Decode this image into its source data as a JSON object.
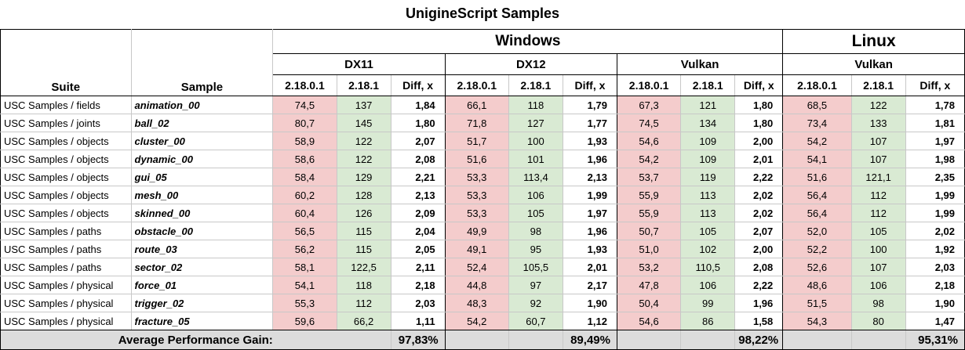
{
  "title": "UnigineScript Samples",
  "headers": {
    "suite": "Suite",
    "sample": "Sample",
    "windows": "Windows",
    "linux": "Linux",
    "dx11": "DX11",
    "dx12": "DX12",
    "vulkan_win": "Vulkan",
    "vulkan_linux": "Vulkan",
    "v_old": "2.18.0.1",
    "v_new": "2.18.1",
    "diff": "Diff, x"
  },
  "rows": [
    {
      "suite": "USC Samples / fields",
      "sample": "animation_00",
      "v": [
        "74,5",
        "137",
        "1,84",
        "66,1",
        "118",
        "1,79",
        "67,3",
        "121",
        "1,80",
        "68,5",
        "122",
        "1,78"
      ]
    },
    {
      "suite": "USC Samples / joints",
      "sample": "ball_02",
      "v": [
        "80,7",
        "145",
        "1,80",
        "71,8",
        "127",
        "1,77",
        "74,5",
        "134",
        "1,80",
        "73,4",
        "133",
        "1,81"
      ]
    },
    {
      "suite": "USC Samples / objects",
      "sample": "cluster_00",
      "v": [
        "58,9",
        "122",
        "2,07",
        "51,7",
        "100",
        "1,93",
        "54,6",
        "109",
        "2,00",
        "54,2",
        "107",
        "1,97"
      ]
    },
    {
      "suite": "USC Samples / objects",
      "sample": "dynamic_00",
      "v": [
        "58,6",
        "122",
        "2,08",
        "51,6",
        "101",
        "1,96",
        "54,2",
        "109",
        "2,01",
        "54,1",
        "107",
        "1,98"
      ]
    },
    {
      "suite": "USC Samples / objects",
      "sample": "gui_05",
      "v": [
        "58,4",
        "129",
        "2,21",
        "53,3",
        "113,4",
        "2,13",
        "53,7",
        "119",
        "2,22",
        "51,6",
        "121,1",
        "2,35"
      ]
    },
    {
      "suite": "USC Samples / objects",
      "sample": "mesh_00",
      "v": [
        "60,2",
        "128",
        "2,13",
        "53,3",
        "106",
        "1,99",
        "55,9",
        "113",
        "2,02",
        "56,4",
        "112",
        "1,99"
      ]
    },
    {
      "suite": "USC Samples / objects",
      "sample": "skinned_00",
      "v": [
        "60,4",
        "126",
        "2,09",
        "53,3",
        "105",
        "1,97",
        "55,9",
        "113",
        "2,02",
        "56,4",
        "112",
        "1,99"
      ]
    },
    {
      "suite": "USC Samples / paths",
      "sample": "obstacle_00",
      "v": [
        "56,5",
        "115",
        "2,04",
        "49,9",
        "98",
        "1,96",
        "50,7",
        "105",
        "2,07",
        "52,0",
        "105",
        "2,02"
      ]
    },
    {
      "suite": "USC Samples / paths",
      "sample": "route_03",
      "v": [
        "56,2",
        "115",
        "2,05",
        "49,1",
        "95",
        "1,93",
        "51,0",
        "102",
        "2,00",
        "52,2",
        "100",
        "1,92"
      ]
    },
    {
      "suite": "USC Samples / paths",
      "sample": "sector_02",
      "v": [
        "58,1",
        "122,5",
        "2,11",
        "52,4",
        "105,5",
        "2,01",
        "53,2",
        "110,5",
        "2,08",
        "52,6",
        "107",
        "2,03"
      ]
    },
    {
      "suite": "USC Samples / physical",
      "sample": "force_01",
      "v": [
        "54,1",
        "118",
        "2,18",
        "44,8",
        "97",
        "2,17",
        "47,8",
        "106",
        "2,22",
        "48,6",
        "106",
        "2,18"
      ]
    },
    {
      "suite": "USC Samples / physical",
      "sample": "trigger_02",
      "v": [
        "55,3",
        "112",
        "2,03",
        "48,3",
        "92",
        "1,90",
        "50,4",
        "99",
        "1,96",
        "51,5",
        "98",
        "1,90"
      ]
    },
    {
      "suite": "USC Samples / physical",
      "sample": "fracture_05",
      "v": [
        "59,6",
        "66,2",
        "1,11",
        "54,2",
        "60,7",
        "1,12",
        "54,6",
        "86",
        "1,58",
        "54,3",
        "80",
        "1,47"
      ]
    }
  ],
  "footer": {
    "label": "Average Performance Gain:",
    "dx11": "97,83%",
    "dx12": "89,49%",
    "vulkan_win": "98,22%",
    "vulkan_linux": "95,31%"
  }
}
